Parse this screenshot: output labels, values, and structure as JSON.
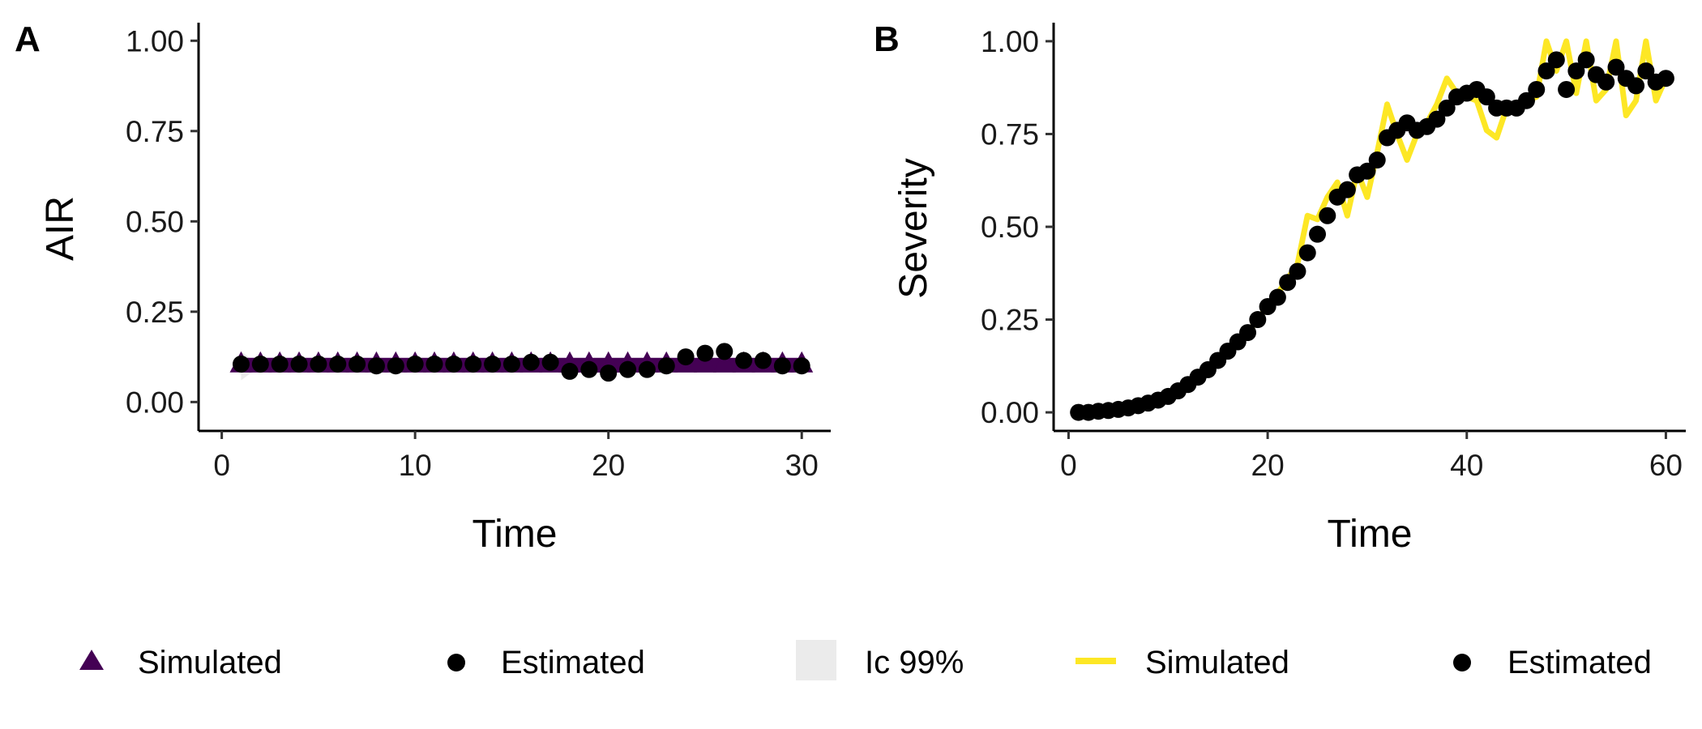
{
  "chart_data": [
    {
      "panel_tag": "A",
      "type": "scatter",
      "xlabel": "Time",
      "ylabel": "AIR",
      "xlim": [
        -1.2,
        31.5
      ],
      "ylim": [
        -0.08,
        1.05
      ],
      "xticks": [
        {
          "value": 0,
          "label": "0"
        },
        {
          "value": 10,
          "label": "10"
        },
        {
          "value": 20,
          "label": "20"
        },
        {
          "value": 30,
          "label": "30"
        }
      ],
      "yticks": [
        {
          "value": 0,
          "label": "0.00"
        },
        {
          "value": 0.25,
          "label": "0.25"
        },
        {
          "value": 0.5,
          "label": "0.50"
        },
        {
          "value": 0.75,
          "label": "0.75"
        },
        {
          "value": 1,
          "label": "1.00"
        }
      ],
      "grid": false,
      "series": [
        {
          "name": "Simulated",
          "kind": "triangle",
          "color": "#440154",
          "x": [
            1,
            2,
            3,
            4,
            5,
            6,
            7,
            8,
            9,
            10,
            11,
            12,
            13,
            14,
            15,
            16,
            17,
            18,
            19,
            20,
            21,
            22,
            23,
            24,
            25,
            26,
            27,
            28,
            29,
            30
          ],
          "y": [
            0.1,
            0.1,
            0.1,
            0.1,
            0.1,
            0.1,
            0.1,
            0.1,
            0.1,
            0.1,
            0.1,
            0.1,
            0.1,
            0.1,
            0.1,
            0.1,
            0.1,
            0.1,
            0.1,
            0.1,
            0.1,
            0.1,
            0.1,
            0.1,
            0.1,
            0.1,
            0.1,
            0.1,
            0.1,
            0.1
          ]
        },
        {
          "name": "Estimated",
          "kind": "point",
          "color": "#000000",
          "x": [
            1,
            2,
            3,
            4,
            5,
            6,
            7,
            8,
            9,
            10,
            11,
            12,
            13,
            14,
            15,
            16,
            17,
            18,
            19,
            20,
            21,
            22,
            23,
            24,
            25,
            26,
            27,
            28,
            29,
            30
          ],
          "y": [
            0.105,
            0.105,
            0.105,
            0.105,
            0.105,
            0.105,
            0.105,
            0.1,
            0.1,
            0.105,
            0.105,
            0.105,
            0.105,
            0.105,
            0.105,
            0.11,
            0.11,
            0.085,
            0.09,
            0.08,
            0.09,
            0.09,
            0.1,
            0.125,
            0.135,
            0.14,
            0.115,
            0.115,
            0.1,
            0.1
          ]
        },
        {
          "name": "Ic 99%",
          "kind": "band",
          "color": "#ebebeb",
          "x": [
            1,
            1.5
          ],
          "lower": [
            0.06,
            0.08
          ],
          "upper": [
            0.14,
            0.12
          ]
        }
      ]
    },
    {
      "panel_tag": "B",
      "type": "line",
      "xlabel": "Time",
      "ylabel": "Severity",
      "xlim": [
        -1.5,
        62
      ],
      "ylim": [
        -0.05,
        1.05
      ],
      "xticks": [
        {
          "value": 0,
          "label": "0"
        },
        {
          "value": 20,
          "label": "20"
        },
        {
          "value": 40,
          "label": "40"
        },
        {
          "value": 60,
          "label": "60"
        }
      ],
      "yticks": [
        {
          "value": 0,
          "label": "0.00"
        },
        {
          "value": 0.25,
          "label": "0.25"
        },
        {
          "value": 0.5,
          "label": "0.50"
        },
        {
          "value": 0.75,
          "label": "0.75"
        },
        {
          "value": 1,
          "label": "1.00"
        }
      ],
      "grid": false,
      "series": [
        {
          "name": "Simulated",
          "kind": "line",
          "color": "#FDE725",
          "x": [
            1,
            2,
            3,
            4,
            5,
            6,
            7,
            8,
            9,
            10,
            11,
            12,
            13,
            14,
            15,
            16,
            17,
            18,
            19,
            20,
            21,
            22,
            23,
            24,
            25,
            26,
            27,
            28,
            29,
            30,
            31,
            32,
            33,
            34,
            35,
            36,
            37,
            38,
            39,
            40,
            41,
            42,
            43,
            44,
            45,
            46,
            47,
            48,
            49,
            50,
            51,
            52,
            53,
            54,
            55,
            56,
            57,
            58,
            59,
            60
          ],
          "y": [
            0.0,
            0.0,
            0.005,
            0.005,
            0.008,
            0.012,
            0.018,
            0.025,
            0.033,
            0.043,
            0.058,
            0.075,
            0.095,
            0.115,
            0.14,
            0.165,
            0.19,
            0.215,
            0.25,
            0.285,
            0.32,
            0.36,
            0.4,
            0.53,
            0.52,
            0.58,
            0.62,
            0.53,
            0.65,
            0.58,
            0.7,
            0.83,
            0.75,
            0.68,
            0.75,
            0.78,
            0.83,
            0.9,
            0.86,
            0.85,
            0.84,
            0.76,
            0.74,
            0.82,
            0.83,
            0.84,
            0.85,
            1.0,
            0.92,
            1.0,
            0.86,
            1.0,
            0.84,
            0.87,
            1.0,
            0.8,
            0.84,
            1.0,
            0.84,
            0.9
          ]
        },
        {
          "name": "Estimated",
          "kind": "point",
          "color": "#000000",
          "x": [
            1,
            2,
            3,
            4,
            5,
            6,
            7,
            8,
            9,
            10,
            11,
            12,
            13,
            14,
            15,
            16,
            17,
            18,
            19,
            20,
            21,
            22,
            23,
            24,
            25,
            26,
            27,
            28,
            29,
            30,
            31,
            32,
            33,
            34,
            35,
            36,
            37,
            38,
            39,
            40,
            41,
            42,
            43,
            44,
            45,
            46,
            47,
            48,
            49,
            50,
            51,
            52,
            53,
            54,
            55,
            56,
            57,
            58,
            59,
            60
          ],
          "y": [
            0.0,
            0.0,
            0.003,
            0.005,
            0.008,
            0.012,
            0.018,
            0.025,
            0.033,
            0.043,
            0.058,
            0.075,
            0.095,
            0.115,
            0.14,
            0.165,
            0.19,
            0.215,
            0.25,
            0.285,
            0.31,
            0.35,
            0.38,
            0.43,
            0.48,
            0.53,
            0.58,
            0.6,
            0.64,
            0.65,
            0.68,
            0.74,
            0.76,
            0.78,
            0.76,
            0.77,
            0.79,
            0.82,
            0.85,
            0.86,
            0.87,
            0.85,
            0.82,
            0.82,
            0.82,
            0.84,
            0.87,
            0.92,
            0.95,
            0.87,
            0.92,
            0.95,
            0.91,
            0.89,
            0.93,
            0.9,
            0.88,
            0.92,
            0.89,
            0.9
          ]
        }
      ]
    }
  ],
  "legend": [
    {
      "label": "Simulated",
      "symbol": "triangle",
      "color": "#440154"
    },
    {
      "label": "Estimated",
      "symbol": "point",
      "color": "#000000"
    },
    {
      "label": "Ic 99%",
      "symbol": "square",
      "color": "#ebebeb"
    },
    {
      "label": "Simulated",
      "symbol": "line",
      "color": "#FDE725"
    },
    {
      "label": "Estimated",
      "symbol": "point",
      "color": "#000000"
    }
  ]
}
